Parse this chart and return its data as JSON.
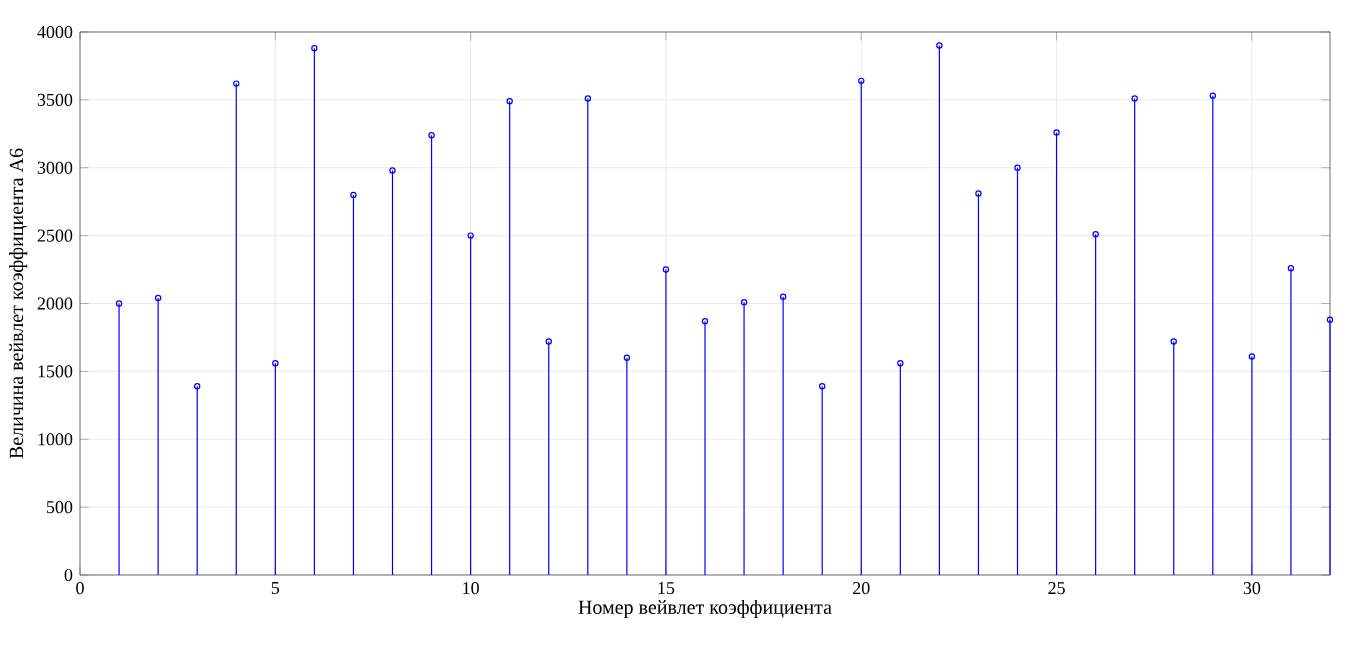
{
  "chart_data": {
    "type": "lollipop",
    "xlabel": "Номер вейвлет коэффициента",
    "ylabel": "Величина вейвлет коэффициента А6",
    "x": [
      1,
      2,
      3,
      4,
      5,
      6,
      7,
      8,
      9,
      10,
      11,
      12,
      13,
      14,
      15,
      16,
      17,
      18,
      19,
      20,
      21,
      22,
      23,
      24,
      25,
      26,
      27,
      28,
      29,
      30,
      31,
      32
    ],
    "values": [
      2000,
      2040,
      1390,
      3620,
      1560,
      3880,
      2800,
      2980,
      3240,
      2500,
      3490,
      1720,
      3510,
      1600,
      2250,
      1870,
      2010,
      2050,
      1390,
      3640,
      1560,
      3900,
      2810,
      3000,
      3260,
      2510,
      3510,
      1720,
      3530,
      1610,
      2260,
      1880
    ],
    "color": "#0000ff",
    "marker": "circle",
    "grid": true,
    "xlim": [
      0,
      32
    ],
    "ylim": [
      0,
      4000
    ],
    "xticks": [
      0,
      5,
      10,
      15,
      20,
      25,
      30
    ],
    "yticks": [
      0,
      500,
      1000,
      1500,
      2000,
      2500,
      3000,
      3500,
      4000
    ]
  }
}
